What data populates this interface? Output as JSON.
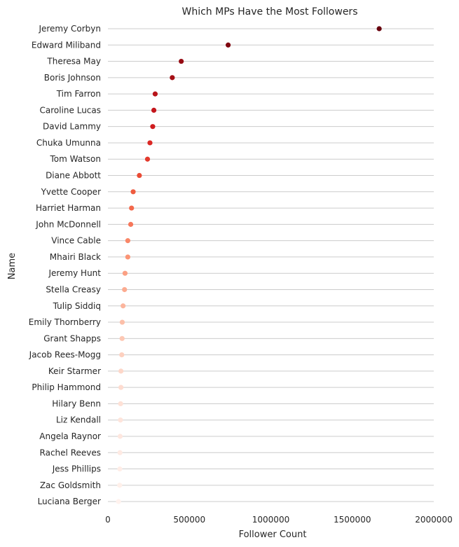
{
  "chart_data": {
    "type": "scatter",
    "title": "Which MPs Have the Most Followers",
    "xlabel": "Follower Count",
    "ylabel": "Name",
    "xlim": [
      0,
      2000000
    ],
    "x_ticks": [
      "0",
      "500000",
      "1000000",
      "1500000",
      "2000000"
    ],
    "x_tick_values": [
      0,
      500000,
      1000000,
      1500000,
      2000000
    ],
    "grid": "horizontal",
    "colormap": "Reds",
    "names": [
      "Jeremy Corbyn",
      "Edward Miliband",
      "Theresa May",
      "Boris Johnson",
      "Tim Farron",
      "Caroline Lucas",
      "David Lammy",
      "Chuka Umunna",
      "Tom Watson",
      "Diane Abbott",
      "Yvette Cooper",
      "Harriet Harman",
      "John McDonnell",
      "Vince Cable",
      "Mhairi Black",
      "Jeremy Hunt",
      "Stella Creasy",
      "Tulip Siddiq",
      "Emily Thornberry",
      "Grant Shapps",
      "Jacob Rees-Mogg",
      "Keir Starmer",
      "Philip Hammond",
      "Hilary Benn",
      "Liz Kendall",
      "Angela Raynor",
      "Rachel Reeves",
      "Jess Phillips",
      "Zac Goldsmith",
      "Luciana Berger"
    ],
    "values": [
      1665000,
      738000,
      450000,
      395000,
      290000,
      282000,
      275000,
      258000,
      243000,
      193000,
      155000,
      145000,
      140000,
      122000,
      122000,
      105000,
      102000,
      93000,
      88000,
      87000,
      85000,
      80000,
      80000,
      78000,
      77000,
      75000,
      74000,
      73000,
      72000,
      65000
    ],
    "colors": [
      "#67000d",
      "#7f0610",
      "#960b13",
      "#a50f15",
      "#b81419",
      "#c4161c",
      "#cf1c1f",
      "#db2824",
      "#e33a2d",
      "#ea4b35",
      "#ef5b3f",
      "#f3684b",
      "#f6775a",
      "#f98768",
      "#fb9475",
      "#fba083",
      "#fcab90",
      "#fcb59d",
      "#fcbfa9",
      "#fdc8b4",
      "#fdd0bf",
      "#fdd7c9",
      "#fedcd0",
      "#fee1d6",
      "#fee4db",
      "#fee7df",
      "#feeae3",
      "#ffede7",
      "#fff0ea",
      "#fff2ee"
    ]
  }
}
